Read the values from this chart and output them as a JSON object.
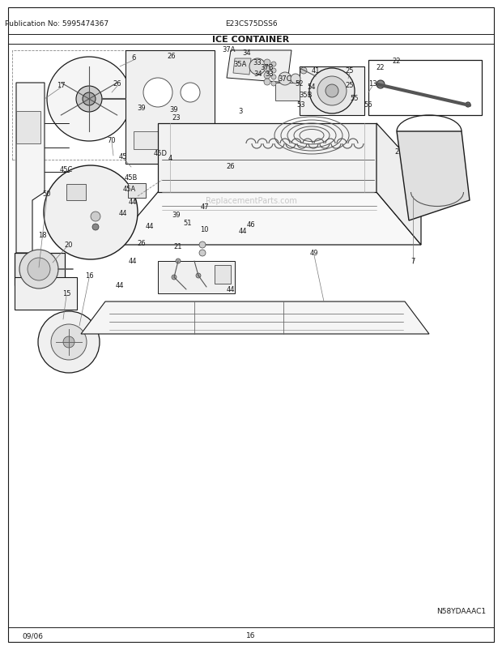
{
  "pub_no": "Publication No: 5995474367",
  "model": "E23CS75DSS6",
  "title": "ICE CONTAINER",
  "diagram_code": "N58YDAAAC1",
  "date": "09/06",
  "page": "16",
  "bg_color": "#ffffff",
  "line_color": "#1a1a1a",
  "text_color": "#1a1a1a",
  "light_gray": "#d0d0d0",
  "medium_gray": "#888888",
  "figsize": [
    6.2,
    8.03
  ],
  "dpi": 100
}
